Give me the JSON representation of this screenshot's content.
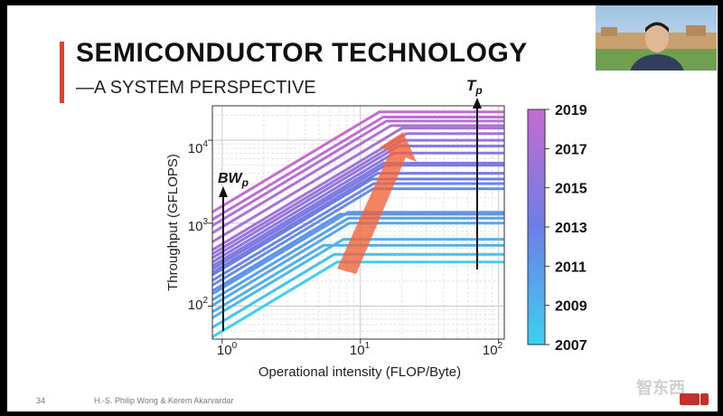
{
  "slide": {
    "title": "SEMICONDUCTOR TECHNOLOGY",
    "subtitle": "—A SYSTEM PERSPECTIVE",
    "page_number": "34",
    "authors": "H.-S. Philip Wong & Kerem Akarvardar",
    "logo_text": "智东西"
  },
  "colors": {
    "accent": "#d9472b",
    "arrow": "#f0643c",
    "cbar_top": "#c46cd0",
    "cbar_mid": "#6d7ee6",
    "cbar_bottom": "#3ed0f0"
  },
  "chart_data": {
    "type": "line",
    "title": "",
    "xlabel": "Operational intensity (FLOP/Byte)",
    "ylabel": "Throughput (GFLOPS)",
    "xscale": "log",
    "yscale": "log",
    "xlim": [
      0.85,
      110
    ],
    "ylim": [
      40,
      26000
    ],
    "grid": true,
    "xticks": [
      1,
      10,
      100
    ],
    "xtick_labels": [
      "10^0",
      "10^1",
      "10^2"
    ],
    "yticks": [
      100,
      1000,
      10000
    ],
    "ytick_labels": [
      "10^2",
      "10^3",
      "10^4"
    ],
    "annotations": {
      "bandwidth_label": "BW",
      "bandwidth_sub": "p",
      "throughput_label": "T",
      "throughput_sub": "p"
    },
    "colorbar": {
      "label_min": 2007,
      "label_max": 2019,
      "ticks": [
        "2019",
        "2017",
        "2015",
        "2013",
        "2011",
        "2009",
        "2007"
      ]
    },
    "series": [
      {
        "year": 2007,
        "bandwidth": 50,
        "peak": 340
      },
      {
        "year": 2008,
        "bandwidth": 65,
        "peak": 420
      },
      {
        "year": 2009,
        "bandwidth": 85,
        "peak": 640
      },
      {
        "year": 2009.5,
        "bandwidth": 100,
        "peak": 540
      },
      {
        "year": 2010,
        "bandwidth": 120,
        "peak": 1000
      },
      {
        "year": 2010.5,
        "bandwidth": 140,
        "peak": 1150
      },
      {
        "year": 2011,
        "bandwidth": 165,
        "peak": 1350
      },
      {
        "year": 2011.5,
        "bandwidth": 180,
        "peak": 1280
      },
      {
        "year": 2012,
        "bandwidth": 210,
        "peak": 2600
      },
      {
        "year": 2012.5,
        "bandwidth": 240,
        "peak": 3000
      },
      {
        "year": 2013,
        "bandwidth": 280,
        "peak": 3400
      },
      {
        "year": 2013.5,
        "bandwidth": 300,
        "peak": 4000
      },
      {
        "year": 2014,
        "bandwidth": 330,
        "peak": 5000
      },
      {
        "year": 2014.5,
        "bandwidth": 360,
        "peak": 5300
      },
      {
        "year": 2015,
        "bandwidth": 400,
        "peak": 7000
      },
      {
        "year": 2015.5,
        "bandwidth": 450,
        "peak": 8500
      },
      {
        "year": 2016,
        "bandwidth": 500,
        "peak": 10000
      },
      {
        "year": 2016.5,
        "bandwidth": 560,
        "peak": 12000
      },
      {
        "year": 2017,
        "bandwidth": 700,
        "peak": 14000
      },
      {
        "year": 2017.5,
        "bandwidth": 900,
        "peak": 15000
      },
      {
        "year": 2018,
        "bandwidth": 1100,
        "peak": 17000
      },
      {
        "year": 2018.5,
        "bandwidth": 1300,
        "peak": 19000
      },
      {
        "year": 2019,
        "bandwidth": 1600,
        "peak": 22000
      }
    ]
  }
}
